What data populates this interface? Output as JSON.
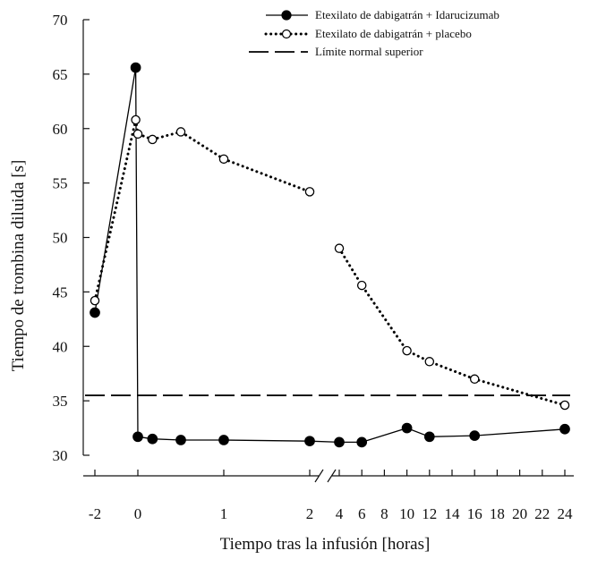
{
  "chart_data": {
    "type": "line",
    "title": "",
    "xlabel": "Tiempo tras la infusión [horas]",
    "ylabel": "Tiempo de trombina diluida [s]",
    "ylim": [
      30,
      70
    ],
    "yticks": [
      30,
      35,
      40,
      45,
      50,
      55,
      60,
      65,
      70
    ],
    "x_ticks_segment1": [
      -2,
      0,
      1,
      2
    ],
    "x_ticks_segment2": [
      4,
      6,
      8,
      10,
      12,
      14,
      16,
      18,
      20,
      22,
      24
    ],
    "x_tick_labels": [
      "-2",
      "0",
      "1",
      "2",
      "4",
      "6",
      "8",
      "10",
      "12",
      "14",
      "16",
      "18",
      "20",
      "22",
      "24"
    ],
    "x_axis_break_between": [
      2,
      4
    ],
    "legend_position": "top-right",
    "grid": false,
    "series": [
      {
        "name": "Etexilato de dabigatrán + Idarucizumab",
        "marker": "filled-circle",
        "line_style": "solid",
        "color": "#000000",
        "points": [
          {
            "x": -2,
            "y": 43.1
          },
          {
            "x": -0.1,
            "y": 65.6
          },
          {
            "x": 0,
            "y": 31.7
          },
          {
            "x": 0.17,
            "y": 31.5
          },
          {
            "x": 0.5,
            "y": 31.4
          },
          {
            "x": 1,
            "y": 31.4
          },
          {
            "x": 2,
            "y": 31.3
          },
          {
            "x": 4,
            "y": 31.2
          },
          {
            "x": 6,
            "y": 31.2
          },
          {
            "x": 10,
            "y": 32.5
          },
          {
            "x": 12,
            "y": 31.7
          },
          {
            "x": 16,
            "y": 31.8
          },
          {
            "x": 24,
            "y": 32.4
          }
        ]
      },
      {
        "name": "Etexilato de dabigatrán + placebo",
        "marker": "open-circle",
        "line_style": "dotted",
        "color": "#000000",
        "points": [
          {
            "x": -2,
            "y": 44.2
          },
          {
            "x": -0.1,
            "y": 60.8
          },
          {
            "x": 0,
            "y": 59.5
          },
          {
            "x": 0.17,
            "y": 59.0
          },
          {
            "x": 0.5,
            "y": 59.7
          },
          {
            "x": 1,
            "y": 57.2
          },
          {
            "x": 2,
            "y": 54.2
          },
          {
            "x": 4,
            "y": 49.0
          },
          {
            "x": 6,
            "y": 45.6
          },
          {
            "x": 10,
            "y": 39.6
          },
          {
            "x": 12,
            "y": 38.6
          },
          {
            "x": 16,
            "y": 37.0
          },
          {
            "x": 24,
            "y": 34.6
          }
        ]
      }
    ],
    "reference_line": {
      "name": "Límite normal superior",
      "y": 35.5,
      "line_style": "dashed",
      "color": "#000000"
    },
    "legend": [
      "Etexilato de dabigatrán + Idarucizumab",
      "Etexilato de dabigatrán + placebo",
      "Límite normal superior"
    ]
  }
}
